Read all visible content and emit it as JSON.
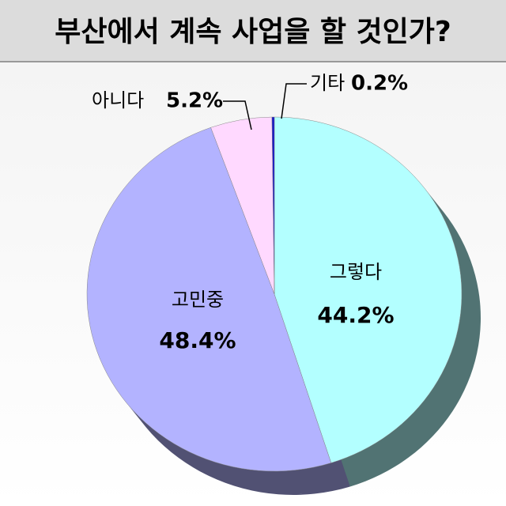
{
  "chart_data": {
    "type": "pie",
    "title": "부산에서 계속 사업을 할 것인가?",
    "categories": [
      "그렇다",
      "고민중",
      "아니다",
      "기타"
    ],
    "values": [
      44.2,
      48.4,
      5.2,
      0.2
    ],
    "value_labels": [
      "44.2%",
      "48.4%",
      "5.2%",
      "0.2%"
    ],
    "colors": [
      "#b3ffff",
      "#b3b3ff",
      "#ffd9ff",
      "#1414c8"
    ]
  }
}
